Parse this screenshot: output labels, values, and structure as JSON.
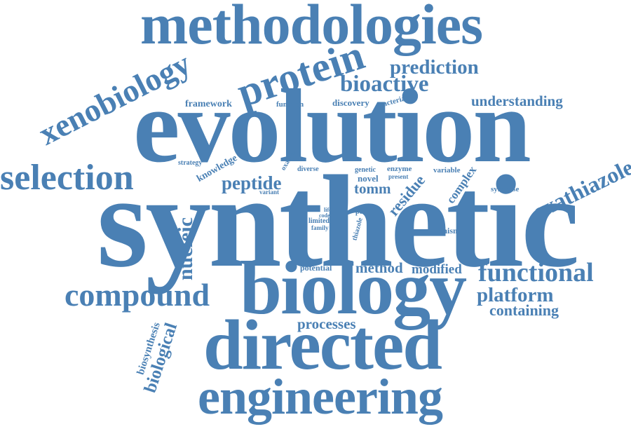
{
  "color": "#4a80b4",
  "words": {
    "synthetic": "synthetic",
    "evolution": "evolution",
    "biology": "biology",
    "directed": "directed",
    "methodologies": "methodologies",
    "engineering": "engineering",
    "protein": "protein",
    "xenobiology": "xenobiology",
    "selection": "selection",
    "compound": "compound",
    "functional": "functional",
    "prediction": "prediction",
    "bioactive": "bioactive",
    "understanding": "understanding",
    "oxathiazole": "oxathiazole",
    "peptide": "peptide",
    "nucleic": "nucleic",
    "biological": "biological",
    "platform": "platform",
    "containing": "containing",
    "method": "method",
    "modified": "modified",
    "residue": "residue",
    "tomm": "tomm",
    "processes": "processes",
    "framework": "framework",
    "function": "function",
    "discovery": "discovery",
    "bacterial": "bacterial",
    "knowledge": "knowledge",
    "strategy": "strategy",
    "oxazole": "oxazole",
    "diverse": "diverse",
    "genetic": "genetic",
    "enzyme": "enzyme",
    "present": "present",
    "novel": "novel",
    "variable": "variable",
    "complex": "complex",
    "synthase": "synthase",
    "variant": "variant",
    "life": "life",
    "code": "code",
    "limited": "limited",
    "family": "family",
    "post": "post",
    "thiazole": "thiazole",
    "organism": "organism",
    "potential": "potential",
    "biosynthesis": "biosynthesis"
  }
}
